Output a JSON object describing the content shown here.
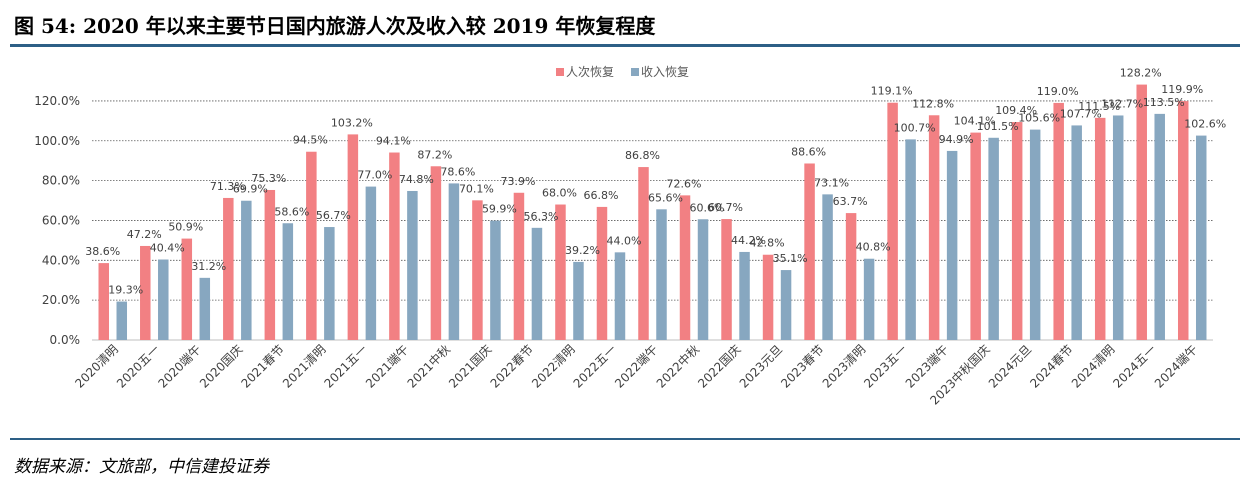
{
  "title": "图 54: 2020 年以来主要节日国内旅游人次及收入较 2019 年恢复程度",
  "source": "数据来源：文旅部，中信建投证券",
  "colors": {
    "trips": "#f28083",
    "revenue": "#87a7c0",
    "rule": "#2d5f86"
  },
  "chart_data": {
    "type": "bar",
    "title": "",
    "xlabel": "",
    "ylabel": "",
    "ylim": [
      0,
      130
    ],
    "yticks": [
      0,
      20,
      40,
      60,
      80,
      100,
      120
    ],
    "ytick_labels": [
      "0.0%",
      "20.0%",
      "40.0%",
      "60.0%",
      "80.0%",
      "100.0%",
      "120.0%"
    ],
    "grid": "horizontal dotted",
    "legend_position": "top-center",
    "categories": [
      "2020清明",
      "2020五一",
      "2020端午",
      "2020国庆",
      "2021春节",
      "2021清明",
      "2021五一",
      "2021端午",
      "2021中秋",
      "2021国庆",
      "2022春节",
      "2022清明",
      "2022五一",
      "2022端午",
      "2022中秋",
      "2022国庆",
      "2023元旦",
      "2023春节",
      "2023清明",
      "2023五一",
      "2023端午",
      "2023中秋国庆",
      "2024元旦",
      "2024春节",
      "2024清明",
      "2024五一",
      "2024端午"
    ],
    "series": [
      {
        "name": "人次恢复",
        "color": "#f28083",
        "values": [
          38.6,
          47.2,
          50.9,
          71.3,
          75.3,
          94.5,
          103.2,
          94.1,
          87.2,
          70.1,
          73.9,
          68.0,
          66.8,
          86.8,
          72.6,
          60.7,
          42.8,
          88.6,
          63.7,
          119.1,
          112.8,
          104.1,
          109.4,
          119.0,
          111.5,
          128.2,
          119.9
        ],
        "labels": [
          "38.6%",
          "47.2%",
          "50.9%",
          "71.3%",
          "75.3%",
          "94.5%",
          "103.2%",
          "94.1%",
          "87.2%",
          "70.1%",
          "73.9%",
          "68.0%",
          "66.8%",
          "86.8%",
          "72.6%",
          "60.7%",
          "42.8%",
          "88.6%",
          "63.7%",
          "119.1%",
          "112.8%",
          "104.1%",
          "109.4%",
          "119.0%",
          "111.5%",
          "128.2%",
          "119.9%"
        ]
      },
      {
        "name": "收入恢复",
        "color": "#87a7c0",
        "values": [
          19.3,
          40.4,
          31.2,
          69.9,
          58.6,
          56.7,
          77.0,
          74.8,
          78.6,
          59.9,
          56.3,
          39.2,
          44.0,
          65.6,
          60.6,
          44.2,
          35.1,
          73.1,
          40.8,
          100.7,
          94.9,
          101.5,
          105.6,
          107.7,
          112.7,
          113.5,
          102.6
        ],
        "labels": [
          "19.3%",
          "40.4%",
          "31.2%",
          "69.9%",
          "58.6%",
          "56.7%",
          "77.0%",
          "74.8%",
          "78.6%",
          "59.9%",
          "56.3%",
          "39.2%",
          "44.0%",
          "65.6%",
          "60.6%",
          "44.2%",
          "35.1%",
          "73.1%",
          "40.8%",
          "100.7%",
          "94.9%",
          "101.5%",
          "105.6%",
          "107.7%",
          "112.7%",
          "113.5%",
          "102.6%"
        ]
      }
    ]
  }
}
